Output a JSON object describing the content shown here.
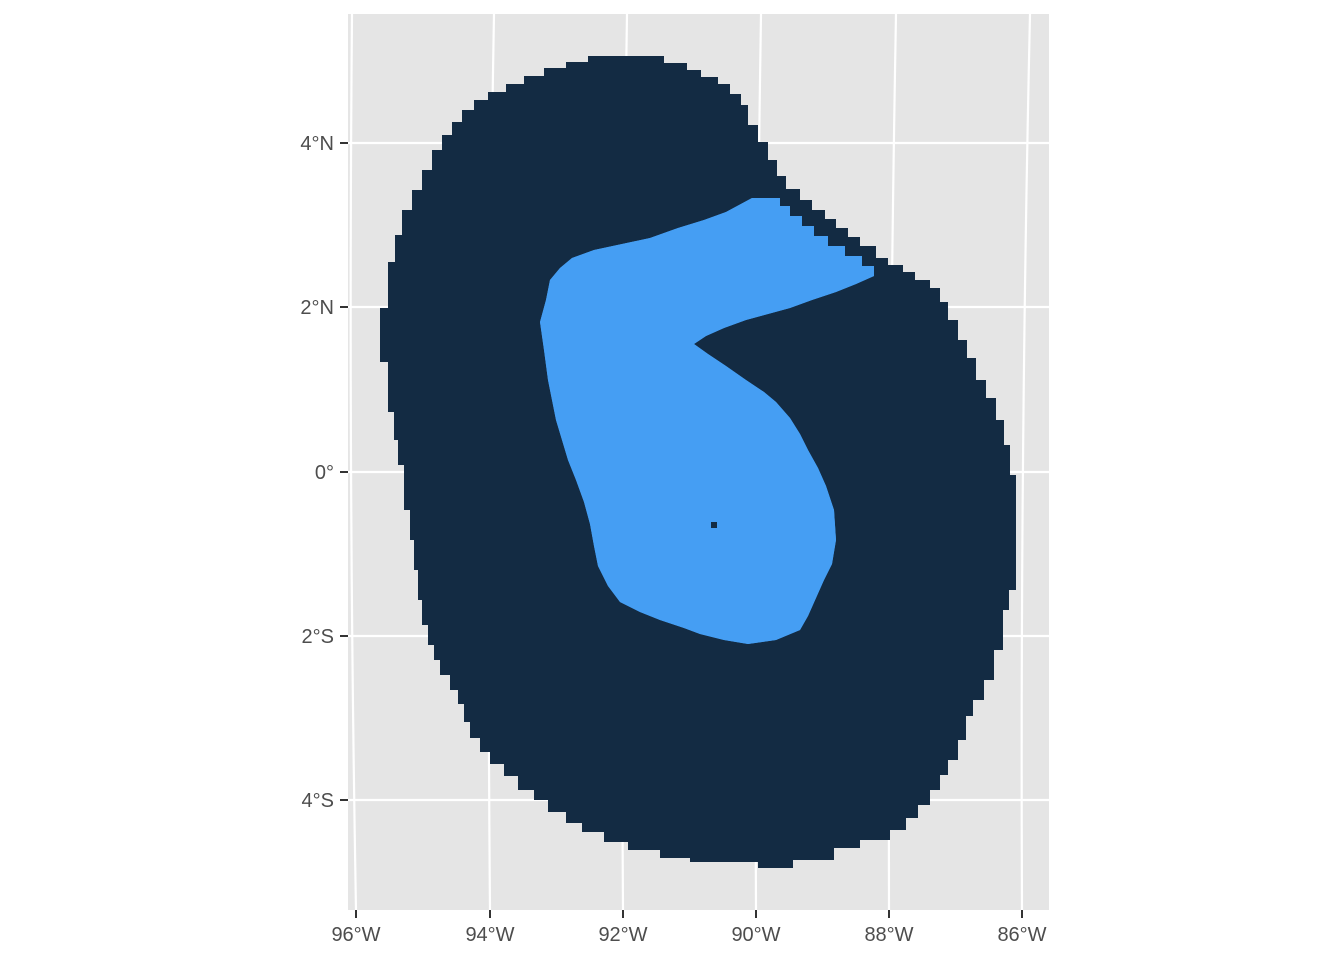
{
  "colors": {
    "panel_background": "#e5e5e5",
    "graticule": "#ffffff",
    "outer_region_fill": "#132b43",
    "inner_region_fill": "#459ef3",
    "cell_grid_line": "#4a6684",
    "tick_mark": "#333333",
    "tick_text": "#4d4d4d"
  },
  "map": {
    "projection": "conic (graticule slightly rotated)",
    "x_axis_ticks": [
      "96°W",
      "94°W",
      "92°W",
      "90°W",
      "88°W",
      "86°W"
    ],
    "y_axis_ticks": [
      "4°N",
      "2°N",
      "0°",
      "2°S",
      "4°S"
    ],
    "layers": [
      {
        "name": "outer raster cells",
        "fill": "#132b43",
        "extent_lon": [
          -95.6,
          -86.1
        ],
        "extent_lat": [
          -4.8,
          5.0
        ]
      },
      {
        "name": "inner raster cells",
        "fill": "#459ef3",
        "extent_lon": [
          -93.2,
          -88.2
        ],
        "extent_lat": [
          -2.1,
          3.3
        ]
      }
    ],
    "hole_in_inner_layer": {
      "lon": -90.6,
      "lat": -0.65
    }
  }
}
